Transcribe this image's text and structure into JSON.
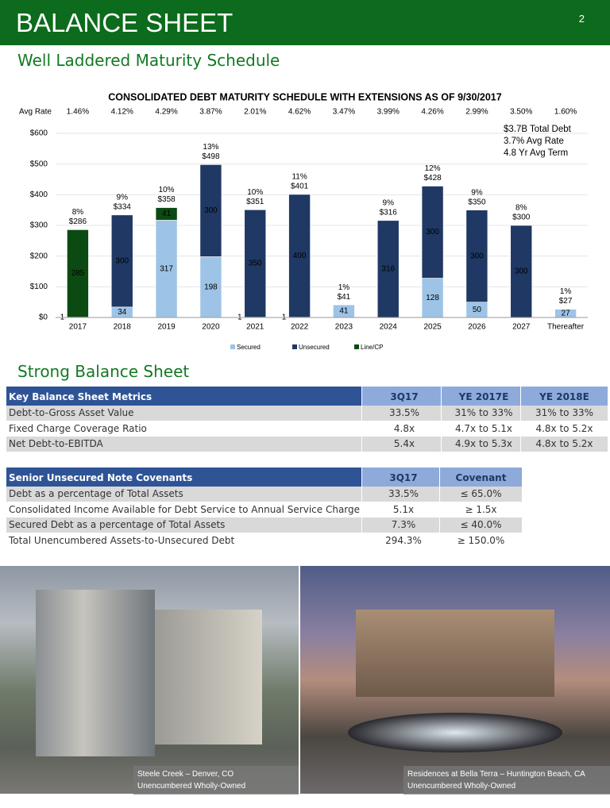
{
  "header": {
    "title": "BALANCE SHEET",
    "page_number": "2"
  },
  "section_1": "Well Laddered Maturity Schedule",
  "chart_data": {
    "type": "bar",
    "stacked": true,
    "title": "CONSOLIDATED DEBT MATURITY SCHEDULE WITH EXTENSIONS AS OF 9/30/2017",
    "avg_rate_label": "Avg Rate",
    "avg_rates": [
      "1.46%",
      "4.12%",
      "4.29%",
      "3.87%",
      "2.01%",
      "4.62%",
      "3.47%",
      "3.99%",
      "4.26%",
      "2.99%",
      "3.50%",
      "1.60%"
    ],
    "categories": [
      "2017",
      "2018",
      "2019",
      "2020",
      "2021",
      "2022",
      "2023",
      "2024",
      "2025",
      "2026",
      "2027",
      "Thereafter"
    ],
    "series": [
      {
        "name": "Secured",
        "color": "#9dc3e6",
        "values": [
          1,
          34,
          317,
          198,
          1,
          1,
          41,
          null,
          128,
          50,
          null,
          27
        ]
      },
      {
        "name": "Unsecured",
        "color": "#1f3864",
        "values": [
          null,
          300,
          null,
          300,
          350,
          400,
          null,
          316,
          300,
          300,
          300,
          null
        ]
      },
      {
        "name": "Line/CP",
        "color": "#0b4a12",
        "values": [
          285,
          null,
          41,
          null,
          null,
          null,
          null,
          null,
          null,
          null,
          null,
          null
        ]
      }
    ],
    "total_labels": [
      "$286",
      "$334",
      "$358",
      "$498",
      "$351",
      "$401",
      "$41",
      "$316",
      "$428",
      "$350",
      "$300",
      "$27"
    ],
    "pct_labels": [
      "8%",
      "9%",
      "10%",
      "13%",
      "10%",
      "11%",
      "1%",
      "9%",
      "12%",
      "9%",
      "8%",
      "1%"
    ],
    "annotations": [
      "$3.7B Total Debt",
      "3.7% Avg Rate",
      "4.8 Yr Avg Term"
    ],
    "ylim": [
      0,
      600
    ],
    "yticks": [
      {
        "value": 0,
        "label": "$0"
      },
      {
        "value": 100,
        "label": "$100"
      },
      {
        "value": 200,
        "label": "$200"
      },
      {
        "value": 300,
        "label": "$300"
      },
      {
        "value": 400,
        "label": "$400"
      },
      {
        "value": 500,
        "label": "$500"
      },
      {
        "value": 600,
        "label": "$600"
      }
    ],
    "grid": true,
    "legend": "bottom"
  },
  "section_2": "Strong Balance Sheet",
  "key_metrics": {
    "header": [
      "Key Balance Sheet Metrics",
      "3Q17",
      "YE 2017E",
      "YE 2018E"
    ],
    "rows": [
      [
        "Debt-to-Gross Asset Value",
        "33.5%",
        "31% to 33%",
        "31% to 33%"
      ],
      [
        "Fixed Charge Coverage Ratio",
        "4.8x",
        "4.7x to 5.1x",
        "4.8x to 5.2x"
      ],
      [
        "Net Debt-to-EBITDA",
        "5.4x",
        "4.9x to 5.3x",
        "4.8x to 5.2x"
      ]
    ]
  },
  "covenants": {
    "header": [
      "Senior Unsecured Note Covenants",
      "3Q17",
      "Covenant"
    ],
    "rows": [
      [
        "Debt as a percentage of Total Assets",
        "33.5%",
        "≤ 65.0%"
      ],
      [
        "Consolidated Income Available for Debt Service to Annual Service Charge",
        "5.1x",
        "≥ 1.5x"
      ],
      [
        "Secured Debt as a percentage of Total Assets",
        "7.3%",
        "≤ 40.0%"
      ],
      [
        "Total Unencumbered Assets-to-Unsecured Debt",
        "294.3%",
        "≥ 150.0%"
      ]
    ]
  },
  "photos": [
    {
      "caption": "Steele Creek – Denver, CO",
      "subcaption": "Unencumbered Wholly-Owned"
    },
    {
      "caption": "Residences at Bella Terra – Huntington Beach, CA",
      "subcaption": "Unencumbered Wholly-Owned"
    }
  ]
}
